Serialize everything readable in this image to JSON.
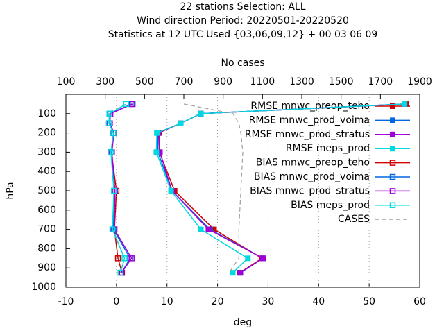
{
  "chart_data": {
    "type": "line",
    "title_lines": [
      "22 stations Selection: ALL",
      "Wind direction  Period: 20220501-20220520",
      "Statistics at 12 UTC  Used {03,06,09,12} + 00 03 06 09"
    ],
    "x_label": "deg",
    "x2_label": "No cases",
    "y_label": "hPa",
    "xlim": [
      -10,
      60
    ],
    "xticks": [
      -10,
      0,
      10,
      20,
      30,
      40,
      50,
      60
    ],
    "x2lim": [
      100,
      1900
    ],
    "x2ticks": [
      100,
      300,
      500,
      700,
      900,
      1100,
      1300,
      1500,
      1700,
      1900
    ],
    "ylim": [
      1000,
      0
    ],
    "yticks": [
      100,
      200,
      300,
      400,
      500,
      600,
      700,
      800,
      900,
      1000
    ],
    "grid": "x",
    "legend": "top-right",
    "y": [
      50,
      100,
      150,
      200,
      300,
      500,
      700,
      850,
      925
    ],
    "series": [
      {
        "name": "RMSE mnwc_preop_teho",
        "color": "#d00000",
        "marker": "filled",
        "values": [
          57.3,
          16.7,
          12.7,
          8.4,
          8.5,
          11.5,
          19.3,
          28.8,
          24.4
        ]
      },
      {
        "name": "RMSE mnwc_prod_voima",
        "color": "#0066e0",
        "marker": "filled",
        "values": [
          57.0,
          16.7,
          12.7,
          8.2,
          8.2,
          11.0,
          18.5,
          29.0,
          24.5
        ]
      },
      {
        "name": "RMSE mnwc_prod_stratus",
        "color": "#a000d8",
        "marker": "filled",
        "values": [
          57.0,
          16.7,
          12.7,
          8.3,
          8.6,
          11.0,
          18.2,
          29.0,
          24.5
        ]
      },
      {
        "name": "RMSE meps_prod",
        "color": "#00d8e0",
        "marker": "filled",
        "values": [
          57.0,
          16.7,
          12.7,
          8.0,
          7.9,
          10.8,
          16.7,
          26.0,
          23.0
        ]
      },
      {
        "name": "BIAS mnwc_preop_teho",
        "color": "#d00000",
        "marker": "open",
        "values": [
          3.0,
          -1.3,
          -1.4,
          -0.6,
          -1.0,
          0.0,
          -0.4,
          0.3,
          1.1
        ]
      },
      {
        "name": "BIAS mnwc_prod_voima",
        "color": "#0066e0",
        "marker": "open",
        "values": [
          3.0,
          -1.3,
          -1.4,
          -0.6,
          -1.0,
          -0.4,
          -0.6,
          2.7,
          1.0
        ]
      },
      {
        "name": "BIAS mnwc_prod_stratus",
        "color": "#a000d8",
        "marker": "open",
        "values": [
          3.2,
          -1.2,
          -1.3,
          -0.5,
          -0.9,
          -0.3,
          -0.4,
          3.0,
          1.0
        ]
      },
      {
        "name": "BIAS meps_prod",
        "color": "#00d8e0",
        "marker": "open",
        "values": [
          1.9,
          -1.4,
          -1.5,
          -0.6,
          -1.1,
          -0.5,
          -0.8,
          1.6,
          0.8
        ]
      },
      {
        "name": "CASES",
        "color": "#a0a0a0",
        "marker": "dashed",
        "axis": "x2",
        "values": [
          700,
          950,
          980,
          990,
          1000,
          990,
          980,
          980,
          930
        ]
      }
    ]
  }
}
